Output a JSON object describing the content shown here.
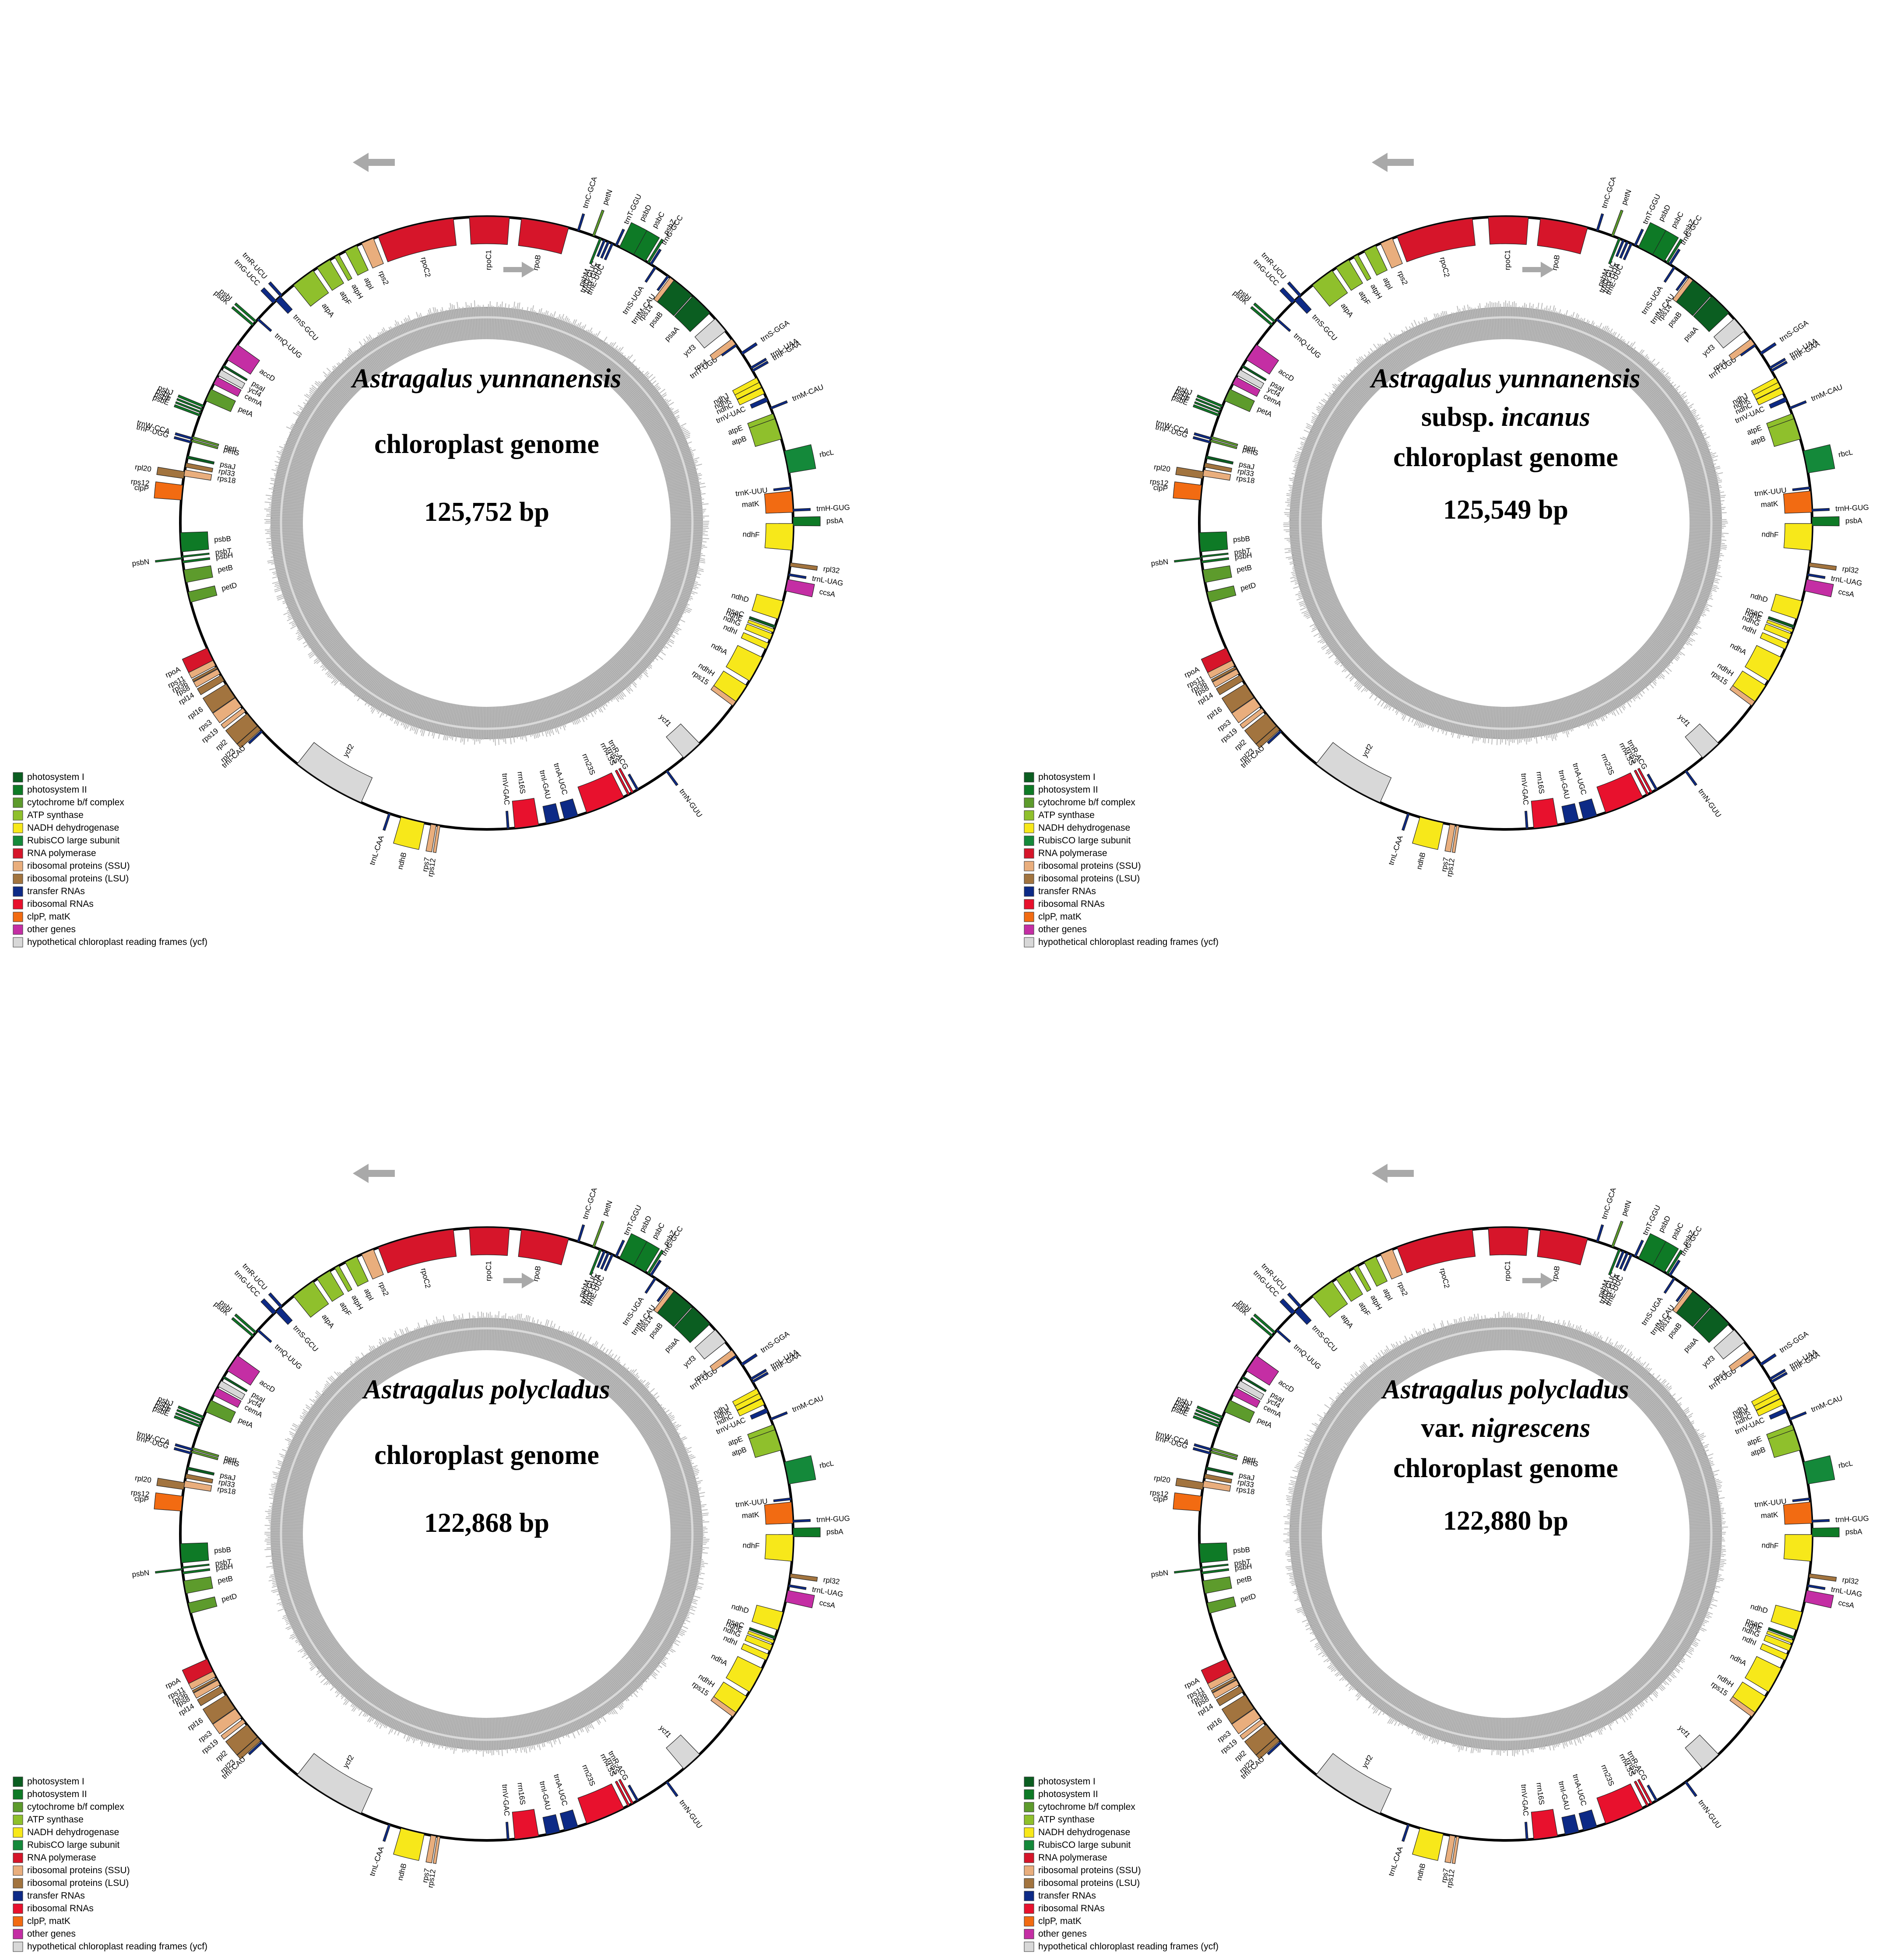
{
  "legend": [
    {
      "key": "ps1",
      "label": "photosystem I",
      "color": "#0b5e21"
    },
    {
      "key": "ps2",
      "label": "photosystem II",
      "color": "#0e7a26"
    },
    {
      "key": "cyt",
      "label": "cytochrome b/f complex",
      "color": "#5d9b2c"
    },
    {
      "key": "atp",
      "label": "ATP synthase",
      "color": "#8fc02c"
    },
    {
      "key": "ndh",
      "label": "NADH dehydrogenase",
      "color": "#f7e81a"
    },
    {
      "key": "rbc",
      "label": "RubisCO large subunit",
      "color": "#14893a"
    },
    {
      "key": "rpo",
      "label": "RNA polymerase",
      "color": "#d6152a"
    },
    {
      "key": "ssu",
      "label": "ribosomal proteins (SSU)",
      "color": "#e9ae7d"
    },
    {
      "key": "lsu",
      "label": "ribosomal proteins (LSU)",
      "color": "#a2743f"
    },
    {
      "key": "trna",
      "label": "transfer RNAs",
      "color": "#0d2a86"
    },
    {
      "key": "rrna",
      "label": "ribosomal RNAs",
      "color": "#e8112d"
    },
    {
      "key": "clp",
      "label": "clpP, matK",
      "color": "#f26b12"
    },
    {
      "key": "oth",
      "label": "other genes",
      "color": "#c42ea4"
    },
    {
      "key": "ycf",
      "label": "hypothetical chloroplast reading frames (ycf)",
      "color": "#d8d8d8"
    }
  ],
  "genes": [
    {
      "name": "psbA",
      "cat": "ps2",
      "a": 0.3,
      "w": 1.6,
      "out": true
    },
    {
      "name": "trnH-GUG",
      "cat": "trna",
      "a": 2.4,
      "w": 0.4,
      "out": true
    },
    {
      "name": "matK",
      "cat": "clp",
      "a": 4.0,
      "w": 4.0,
      "out": false
    },
    {
      "name": "trnK-UUU",
      "cat": "trna",
      "a": 6.6,
      "w": 0.4,
      "out": false
    },
    {
      "name": "rbcL",
      "cat": "rbc",
      "a": 11.5,
      "w": 4.2,
      "out": true
    },
    {
      "name": "atpB",
      "cat": "atp",
      "a": 18.0,
      "w": 4.2,
      "out": false
    },
    {
      "name": "atpE",
      "cat": "atp",
      "a": 20.4,
      "w": 1.0,
      "out": false
    },
    {
      "name": "trnM-CAU",
      "cat": "trna",
      "a": 22.0,
      "w": 0.4,
      "out": true
    },
    {
      "name": "trnV-UAC",
      "cat": "trna",
      "a": 23.8,
      "w": 0.8,
      "out": false
    },
    {
      "name": "ndhC",
      "cat": "ndh",
      "a": 25.6,
      "w": 1.2,
      "out": false
    },
    {
      "name": "ndhK",
      "cat": "ndh",
      "a": 26.8,
      "w": 1.0,
      "out": false
    },
    {
      "name": "ndhJ",
      "cat": "ndh",
      "a": 27.8,
      "w": 1.0,
      "out": false
    },
    {
      "name": "trnF-GAA",
      "cat": "trna",
      "a": 29.8,
      "w": 0.4,
      "out": true
    },
    {
      "name": "trnL-UAA",
      "cat": "trna",
      "a": 30.4,
      "w": 0.4,
      "out": true
    },
    {
      "name": "trnS-GGA",
      "cat": "trna",
      "a": 33.6,
      "w": 0.5,
      "out": true
    },
    {
      "name": "trnT-UGU",
      "cat": "trna",
      "a": 35.5,
      "w": 0.4,
      "out": false
    },
    {
      "name": "rps4",
      "cat": "ssu",
      "a": 36.3,
      "w": 1.2,
      "out": false
    },
    {
      "name": "ycf3",
      "cat": "ycf",
      "a": 40.3,
      "w": 3.0,
      "out": false
    },
    {
      "name": "psaA",
      "cat": "ps1",
      "a": 45.5,
      "w": 4.5,
      "out": false
    },
    {
      "name": "psaB",
      "cat": "ps1",
      "a": 50.2,
      "w": 4.5,
      "out": false
    },
    {
      "name": "rps14",
      "cat": "ssu",
      "a": 52.8,
      "w": 0.9,
      "out": false
    },
    {
      "name": "trnfM-CAU",
      "cat": "trna",
      "a": 53.7,
      "w": 0.4,
      "out": false
    },
    {
      "name": "trnS-UGA",
      "cat": "trna",
      "a": 56.6,
      "w": 0.4,
      "out": false
    },
    {
      "name": "trnG-GCC",
      "cat": "trna",
      "a": 57.6,
      "w": 0.4,
      "out": true
    },
    {
      "name": "psbZ",
      "cat": "ps2",
      "a": 58.2,
      "w": 0.4,
      "out": true
    },
    {
      "name": "psbC",
      "cat": "ps2",
      "a": 60.4,
      "w": 3.2,
      "out": true
    },
    {
      "name": "psbD",
      "cat": "ps2",
      "a": 62.8,
      "w": 3.0,
      "out": true
    },
    {
      "name": "trnT-GGU",
      "cat": "trna",
      "a": 65.0,
      "w": 0.4,
      "out": true
    },
    {
      "name": "trnE-UUC",
      "cat": "trna",
      "a": 65.8,
      "w": 0.4,
      "out": false
    },
    {
      "name": "trnY-GUA",
      "cat": "trna",
      "a": 66.6,
      "w": 0.4,
      "out": false
    },
    {
      "name": "trnD-GUC",
      "cat": "trna",
      "a": 67.4,
      "w": 0.4,
      "out": false
    },
    {
      "name": "psbM",
      "cat": "ps2",
      "a": 68.2,
      "w": 0.4,
      "out": false
    },
    {
      "name": "petN",
      "cat": "cyt",
      "a": 69.6,
      "w": 0.4,
      "out": true
    },
    {
      "name": "trnC-GCA",
      "cat": "trna",
      "a": 72.6,
      "w": 0.4,
      "out": true
    },
    {
      "name": "rpoB",
      "cat": "rpo",
      "a": 79.0,
      "w": 9.0,
      "out": false
    },
    {
      "name": "rpoC1",
      "cat": "rpo",
      "a": 89.5,
      "w": 7.5,
      "out": false
    },
    {
      "name": "rpoC2",
      "cat": "rpo",
      "a": 103.5,
      "w": 14.5,
      "out": false
    },
    {
      "name": "rps2",
      "cat": "ssu",
      "a": 112.9,
      "w": 2.4,
      "out": false
    },
    {
      "name": "atpI",
      "cat": "atp",
      "a": 116.3,
      "w": 2.4,
      "out": false
    },
    {
      "name": "atpH",
      "cat": "atp",
      "a": 119.3,
      "w": 0.9,
      "out": false
    },
    {
      "name": "atpF",
      "cat": "atp",
      "a": 122.2,
      "w": 2.8,
      "out": false
    },
    {
      "name": "atpA",
      "cat": "atp",
      "a": 126.8,
      "w": 4.6,
      "out": false
    },
    {
      "name": "trnR-UCU",
      "cat": "trna",
      "a": 132.1,
      "w": 0.5,
      "out": true
    },
    {
      "name": "trnG-UCC",
      "cat": "trna",
      "a": 133.8,
      "w": 0.8,
      "out": true
    },
    {
      "name": "trnS-GCU",
      "cat": "trna",
      "a": 132.9,
      "w": 1.2,
      "out": false
    },
    {
      "name": "trnQ-UUG",
      "cat": "trna",
      "a": 138.3,
      "w": 0.4,
      "out": false
    },
    {
      "name": "psbI",
      "cat": "ps2",
      "a": 138.9,
      "w": 0.4,
      "out": true
    },
    {
      "name": "psbK",
      "cat": "ps2",
      "a": 139.7,
      "w": 0.4,
      "out": true
    },
    {
      "name": "accD",
      "cat": "oth",
      "a": 146.1,
      "w": 3.4,
      "out": false
    },
    {
      "name": "psaI",
      "cat": "ps1",
      "a": 149.2,
      "w": 0.4,
      "out": false
    },
    {
      "name": "ycf4",
      "cat": "ycf",
      "a": 150.6,
      "w": 1.2,
      "out": false
    },
    {
      "name": "cemA",
      "cat": "oth",
      "a": 152.3,
      "w": 1.5,
      "out": false
    },
    {
      "name": "petA",
      "cat": "cyt",
      "a": 155.3,
      "w": 2.4,
      "out": false
    },
    {
      "name": "psbJ",
      "cat": "ps2",
      "a": 157.6,
      "w": 0.4,
      "out": true
    },
    {
      "name": "psbL",
      "cat": "ps2",
      "a": 158.2,
      "w": 0.3,
      "out": true
    },
    {
      "name": "psbF",
      "cat": "ps2",
      "a": 158.8,
      "w": 0.3,
      "out": true
    },
    {
      "name": "psbE",
      "cat": "ps2",
      "a": 159.4,
      "w": 0.4,
      "out": true
    },
    {
      "name": "petL",
      "cat": "cyt",
      "a": 163.8,
      "w": 0.4,
      "out": false
    },
    {
      "name": "petG",
      "cat": "cyt",
      "a": 164.4,
      "w": 0.4,
      "out": false
    },
    {
      "name": "trnW-CCA",
      "cat": "trna",
      "a": 164.0,
      "w": 0.4,
      "out": true
    },
    {
      "name": "trnP-UGG",
      "cat": "trna",
      "a": 164.7,
      "w": 0.4,
      "out": true
    },
    {
      "name": "psaJ",
      "cat": "ps1",
      "a": 167.6,
      "w": 0.5,
      "out": false
    },
    {
      "name": "rpl33",
      "cat": "lsu",
      "a": 169.1,
      "w": 0.8,
      "out": false
    },
    {
      "name": "rps18",
      "cat": "ssu",
      "a": 170.6,
      "w": 1.2,
      "out": false
    },
    {
      "name": "rpl20",
      "cat": "lsu",
      "a": 171.0,
      "w": 1.3,
      "out": true
    },
    {
      "name": "rps12",
      "cat": "ssu",
      "a": 173.4,
      "w": 0.3,
      "out": true
    },
    {
      "name": "clpP",
      "cat": "clp",
      "a": 174.3,
      "w": 2.8,
      "out": true
    },
    {
      "name": "psbB",
      "cat": "ps2",
      "a": 183.6,
      "w": 3.6,
      "out": false
    },
    {
      "name": "psbT",
      "cat": "ps2",
      "a": 186.3,
      "w": 0.3,
      "out": false
    },
    {
      "name": "psbN",
      "cat": "ps2",
      "a": 186.6,
      "w": 0.3,
      "out": true
    },
    {
      "name": "psbH",
      "cat": "ps2",
      "a": 187.3,
      "w": 0.4,
      "out": false
    },
    {
      "name": "petB",
      "cat": "cyt",
      "a": 190.0,
      "w": 2.4,
      "out": false
    },
    {
      "name": "petD",
      "cat": "cyt",
      "a": 194.0,
      "w": 2.0,
      "out": false
    },
    {
      "name": "rpoA",
      "cat": "rpo",
      "a": 205.5,
      "w": 2.8,
      "out": true
    },
    {
      "name": "rps11",
      "cat": "ssu",
      "a": 207.2,
      "w": 1.1,
      "out": true
    },
    {
      "name": "rpl36",
      "cat": "lsu",
      "a": 208.2,
      "w": 0.4,
      "out": true
    },
    {
      "name": "rps8",
      "cat": "ssu",
      "a": 209.0,
      "w": 1.0,
      "out": true
    },
    {
      "name": "rpl14",
      "cat": "lsu",
      "a": 210.4,
      "w": 1.2,
      "out": true
    },
    {
      "name": "rpl16",
      "cat": "lsu",
      "a": 213.2,
      "w": 3.0,
      "out": true
    },
    {
      "name": "rps3",
      "cat": "ssu",
      "a": 215.8,
      "w": 2.0,
      "out": true
    },
    {
      "name": "rps19",
      "cat": "ssu",
      "a": 217.6,
      "w": 0.8,
      "out": true
    },
    {
      "name": "rpl2",
      "cat": "lsu",
      "a": 220.0,
      "w": 3.0,
      "out": true
    },
    {
      "name": "rpl23",
      "cat": "lsu",
      "a": 222.0,
      "w": 0.9,
      "out": true
    },
    {
      "name": "trnI-CAU",
      "cat": "trna",
      "a": 222.8,
      "w": 0.4,
      "out": true
    },
    {
      "name": "ycf2",
      "cat": "ycf",
      "a": 238.8,
      "w": 14.0,
      "out": false
    },
    {
      "name": "trnL-CAA",
      "cat": "trna",
      "a": 251.5,
      "w": 0.4,
      "out": true
    },
    {
      "name": "ndhB",
      "cat": "ndh",
      "a": 256.0,
      "w": 4.5,
      "out": true
    },
    {
      "name": "rps7",
      "cat": "ssu",
      "a": 260.0,
      "w": 1.0,
      "out": true
    },
    {
      "name": "rps12",
      "cat": "ssu",
      "a": 261.0,
      "w": 0.5,
      "out": true
    },
    {
      "name": "trnV-GAC",
      "cat": "trna",
      "a": 274.0,
      "w": 0.4,
      "out": false
    },
    {
      "name": "rrn16S",
      "cat": "rrna",
      "a": 277.5,
      "w": 4.5,
      "out": false
    },
    {
      "name": "trnI-GAU",
      "cat": "trna",
      "a": 282.5,
      "w": 2.6,
      "out": false
    },
    {
      "name": "trnA-UGC",
      "cat": "trna",
      "a": 286.0,
      "w": 2.6,
      "out": false
    },
    {
      "name": "rrn23S",
      "cat": "rrna",
      "a": 292.8,
      "w": 7.5,
      "out": false
    },
    {
      "name": "rrn4.5S",
      "cat": "rrna",
      "a": 297.6,
      "w": 0.4,
      "out": false
    },
    {
      "name": "rrn5S",
      "cat": "rrna",
      "a": 298.4,
      "w": 0.4,
      "out": false
    },
    {
      "name": "trnR-ACG",
      "cat": "trna",
      "a": 299.5,
      "w": 0.4,
      "out": false
    },
    {
      "name": "trnN-GUU",
      "cat": "trna",
      "a": 306.0,
      "w": 0.4,
      "out": true
    },
    {
      "name": "ycf1",
      "cat": "ycf",
      "a": 312.0,
      "w": 4.0,
      "out": false
    },
    {
      "name": "rps15",
      "cat": "ssu",
      "a": 324.0,
      "w": 1.2,
      "out": false
    },
    {
      "name": "ndhH",
      "cat": "ndh",
      "a": 326.2,
      "w": 3.6,
      "out": false
    },
    {
      "name": "ndhA",
      "cat": "ndh",
      "a": 331.5,
      "w": 5.0,
      "out": false
    },
    {
      "name": "ndhI",
      "cat": "ndh",
      "a": 336.3,
      "w": 1.2,
      "out": false
    },
    {
      "name": "ndhG",
      "cat": "ndh",
      "a": 338.2,
      "w": 1.2,
      "out": false
    },
    {
      "name": "ndhE",
      "cat": "ndh",
      "a": 339.4,
      "w": 0.6,
      "out": false
    },
    {
      "name": "psaC",
      "cat": "ps1",
      "a": 340.2,
      "w": 0.5,
      "out": false
    },
    {
      "name": "ndhD",
      "cat": "ndh",
      "a": 343.5,
      "w": 3.5,
      "out": false
    },
    {
      "name": "ccsA",
      "cat": "oth",
      "a": 348.3,
      "w": 2.2,
      "out": true
    },
    {
      "name": "trnL-UAG",
      "cat": "trna",
      "a": 350.3,
      "w": 0.4,
      "out": true
    },
    {
      "name": "rpl32",
      "cat": "lsu",
      "a": 352.2,
      "w": 0.7,
      "out": true
    },
    {
      "name": "ndhF",
      "cat": "ndh",
      "a": 357.4,
      "w": 5.0,
      "out": false
    }
  ],
  "maps": [
    {
      "species": "Astragalus yunnanensis",
      "line2_prefix": "",
      "line2_italic": "",
      "subtitle": "chloroplast genome",
      "size": "125,752 bp"
    },
    {
      "species": "Astragalus yunnanensis",
      "line2_prefix": "subsp.",
      "line2_italic": "incanus",
      "subtitle": "chloroplast genome",
      "size": "125,549 bp"
    },
    {
      "species": "Astragalus polycladus",
      "line2_prefix": "",
      "line2_italic": "",
      "subtitle": "chloroplast genome",
      "size": "122,868 bp"
    },
    {
      "species": "Astragalus polycladus",
      "line2_prefix": "var.",
      "line2_italic": "nigrescens",
      "subtitle": "chloroplast genome",
      "size": "122,880 bp"
    }
  ]
}
